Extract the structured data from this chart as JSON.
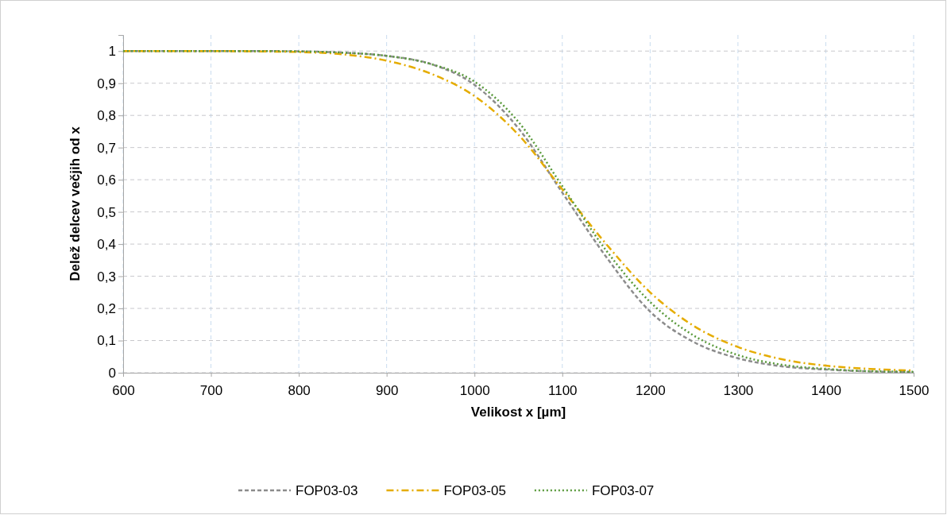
{
  "chart_data": {
    "type": "line",
    "xlabel": "Velikost x [µm]",
    "ylabel": "Delež delcev večjih od x",
    "x": [
      600,
      650,
      700,
      750,
      800,
      850,
      900,
      950,
      1000,
      1050,
      1100,
      1150,
      1200,
      1250,
      1300,
      1350,
      1400,
      1450,
      1500
    ],
    "series": [
      {
        "name": "FOP03-03",
        "color": "#8c8c8c",
        "line_style": "dashed",
        "values": [
          1,
          1,
          1,
          1,
          0.999,
          0.995,
          0.985,
          0.96,
          0.895,
          0.76,
          0.56,
          0.36,
          0.19,
          0.095,
          0.045,
          0.02,
          0.01,
          0.004,
          0.002
        ]
      },
      {
        "name": "FOP03-05",
        "color": "#e5ac00",
        "line_style": "dashdot",
        "values": [
          1,
          1,
          1,
          0.999,
          0.997,
          0.99,
          0.97,
          0.93,
          0.86,
          0.74,
          0.57,
          0.4,
          0.25,
          0.145,
          0.08,
          0.042,
          0.022,
          0.012,
          0.007
        ]
      },
      {
        "name": "FOP03-07",
        "color": "#5a9a3c",
        "line_style": "dotted",
        "values": [
          1,
          1,
          1,
          1,
          0.999,
          0.995,
          0.985,
          0.96,
          0.905,
          0.78,
          0.58,
          0.38,
          0.22,
          0.115,
          0.055,
          0.025,
          0.012,
          0.005,
          0.003
        ]
      }
    ],
    "xlim": [
      600,
      1500
    ],
    "xticks": [
      600,
      700,
      800,
      900,
      1000,
      1100,
      1200,
      1300,
      1400,
      1500
    ],
    "ylim": [
      0,
      1.05
    ],
    "yticks": [
      0,
      {
        "value": 0.1,
        "label": "0,1"
      },
      {
        "value": 0.2,
        "label": "0,2"
      },
      {
        "value": 0.3,
        "label": "0,3"
      },
      {
        "value": 0.4,
        "label": "0,4"
      },
      {
        "value": 0.5,
        "label": "0,5"
      },
      {
        "value": 0.6,
        "label": "0,6"
      },
      {
        "value": 0.7,
        "label": "0,7"
      },
      {
        "value": 0.8,
        "label": "0,8"
      },
      {
        "value": 0.9,
        "label": "0,9"
      },
      1
    ],
    "grid": true,
    "legend": "bottom"
  }
}
